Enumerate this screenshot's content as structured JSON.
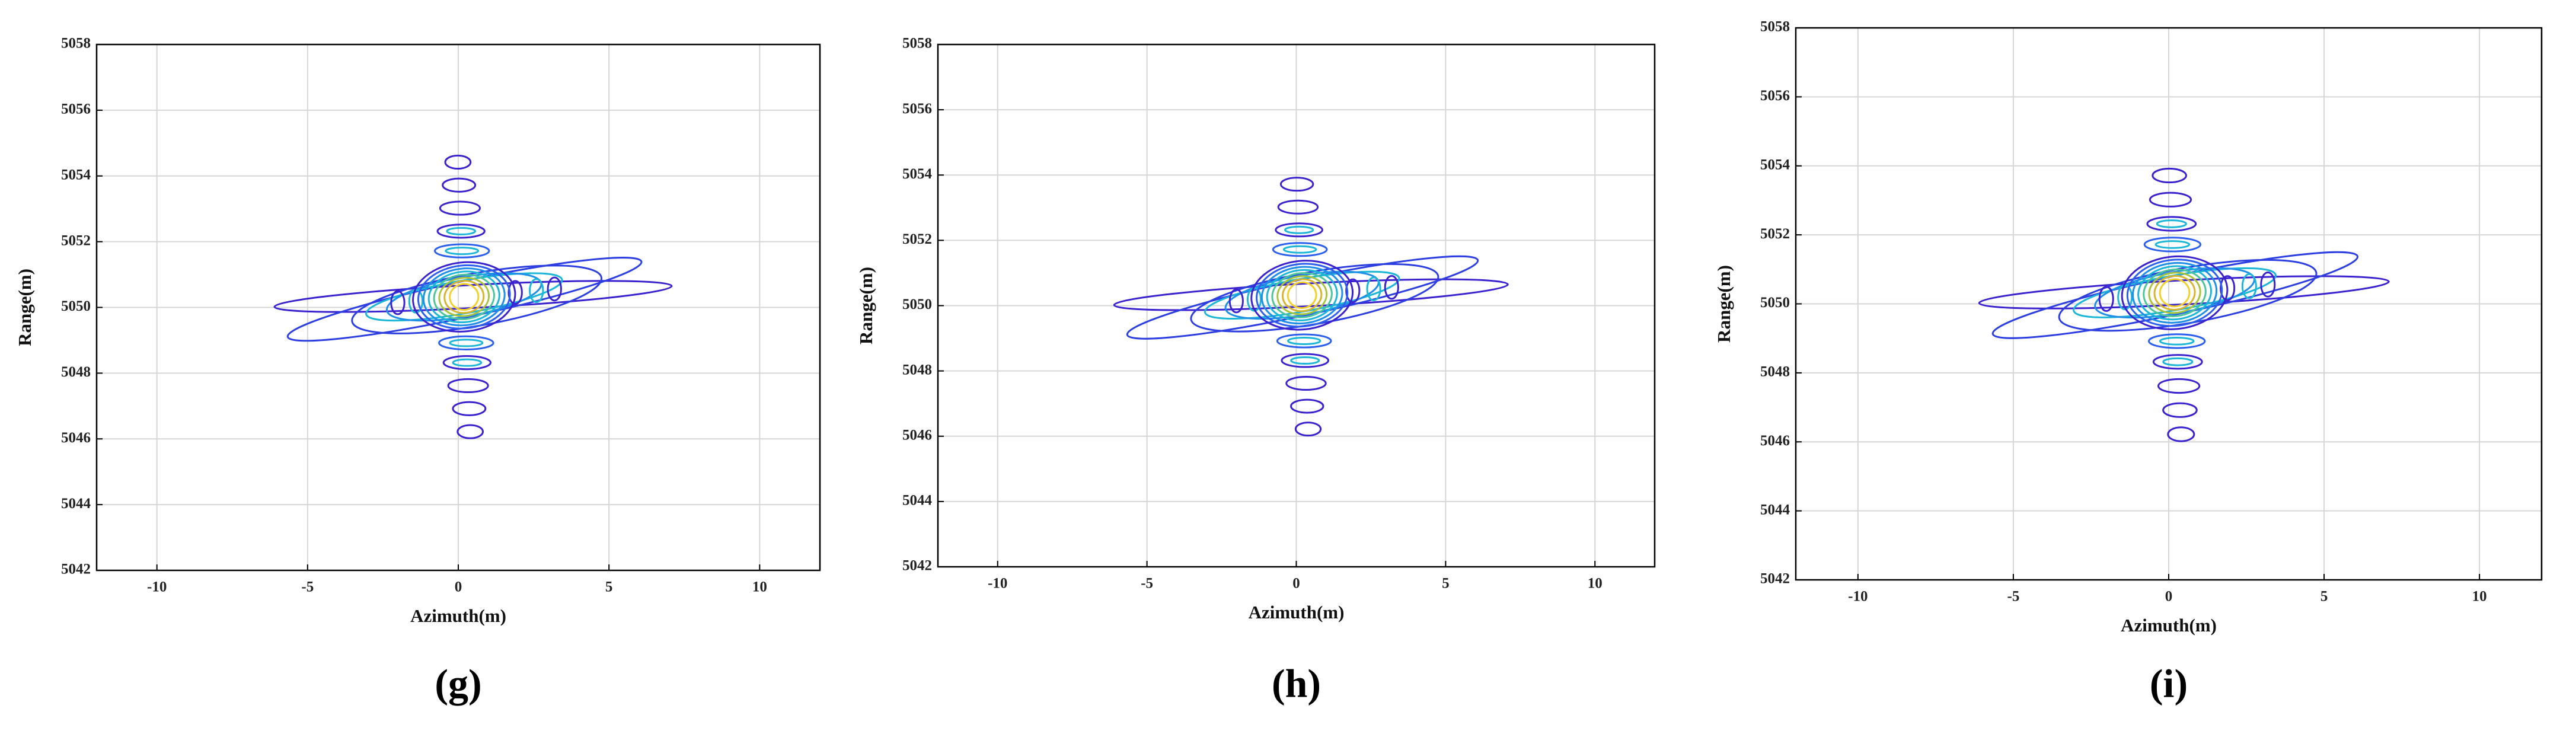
{
  "chart_data": [
    {
      "type": "contour",
      "panel_label": "(g)",
      "xlabel": "Azimuth(m)",
      "ylabel": "Range(m)",
      "xlim": [
        -12,
        12
      ],
      "ylim": [
        5042,
        5058
      ],
      "xticks": [
        -10,
        -5,
        0,
        5,
        10
      ],
      "yticks": [
        5042,
        5044,
        5046,
        5048,
        5050,
        5052,
        5054,
        5056,
        5058
      ],
      "grid": true
    },
    {
      "type": "contour",
      "panel_label": "(h)",
      "xlabel": "Azimuth(m)",
      "ylabel": "Range(m)",
      "xlim": [
        -12,
        12
      ],
      "ylim": [
        5042,
        5058
      ],
      "xticks": [
        -10,
        -5,
        0,
        5,
        10
      ],
      "yticks": [
        5042,
        5044,
        5046,
        5048,
        5050,
        5052,
        5054,
        5056,
        5058
      ],
      "grid": true
    },
    {
      "type": "contour",
      "panel_label": "(i)",
      "xlabel": "Azimuth(m)",
      "ylabel": "Range(m)",
      "xlim": [
        -12,
        12
      ],
      "ylim": [
        5042,
        5058
      ],
      "xticks": [
        -10,
        -5,
        0,
        5,
        10
      ],
      "yticks": [
        5042,
        5044,
        5046,
        5048,
        5050,
        5052,
        5054,
        5056,
        5058
      ],
      "grid": true
    }
  ]
}
